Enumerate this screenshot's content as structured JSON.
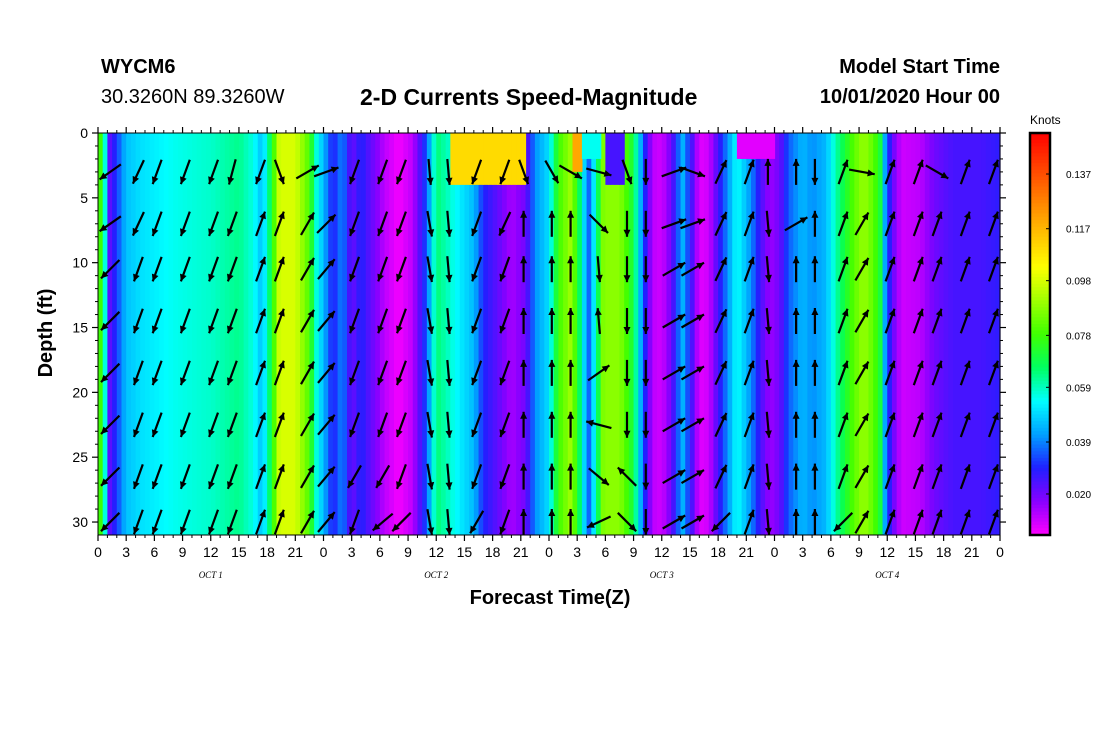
{
  "header": {
    "station_id": "WYCM6",
    "coordinates": "30.3260N 89.3260W",
    "title": "2-D Currents Speed-Magnitude",
    "model_start_label": "Model Start Time",
    "model_start_value": "10/01/2020 Hour 00"
  },
  "chart_data": {
    "type": "heatmap",
    "title": "2-D Currents Speed-Magnitude",
    "xlabel": "Forecast Time(Z)",
    "ylabel": "Depth (ft)",
    "ylim": [
      31,
      0
    ],
    "xlim_hours": [
      0,
      96
    ],
    "y_ticks": [
      0,
      5,
      10,
      15,
      20,
      25,
      30
    ],
    "x_tick_labels": [
      "0",
      "3",
      "6",
      "9",
      "12",
      "15",
      "18",
      "21",
      "0",
      "3",
      "6",
      "9",
      "12",
      "15",
      "18",
      "21",
      "0",
      "3",
      "6",
      "9",
      "12",
      "15",
      "18",
      "21",
      "0",
      "3",
      "6",
      "9",
      "12",
      "15",
      "18",
      "21",
      "0"
    ],
    "day_labels": [
      "OCT 1",
      "OCT 2",
      "OCT 3",
      "OCT 4"
    ],
    "colorbar": {
      "units": "Knots",
      "tick_labels": [
        "0.137",
        "0.117",
        "0.098",
        "0.078",
        "0.059",
        "0.039",
        "0.020"
      ],
      "colors": [
        "#ff00ff",
        "#8800ff",
        "#2020ff",
        "#00a0ff",
        "#00ffff",
        "#00ff60",
        "#40ff00",
        "#a0ff00",
        "#ffff00",
        "#ffc000",
        "#ff8000",
        "#ff4000",
        "#ff0000"
      ],
      "range": [
        0.005,
        0.152
      ]
    },
    "speed_by_hour": [
      {
        "t": 0,
        "v": 0.085
      },
      {
        "t": 0.6,
        "v": 0.068
      },
      {
        "t": 1.2,
        "v": 0.022
      },
      {
        "t": 2.0,
        "v": 0.032
      },
      {
        "t": 3.0,
        "v": 0.046
      },
      {
        "t": 4.5,
        "v": 0.05
      },
      {
        "t": 8,
        "v": 0.055
      },
      {
        "t": 12,
        "v": 0.058
      },
      {
        "t": 15,
        "v": 0.063
      },
      {
        "t": 16.5,
        "v": 0.056
      },
      {
        "t": 17.5,
        "v": 0.045
      },
      {
        "t": 18.5,
        "v": 0.072
      },
      {
        "t": 19.3,
        "v": 0.098
      },
      {
        "t": 21,
        "v": 0.098
      },
      {
        "t": 22.5,
        "v": 0.08
      },
      {
        "t": 23.3,
        "v": 0.055
      },
      {
        "t": 24,
        "v": 0.045
      },
      {
        "t": 25,
        "v": 0.028
      },
      {
        "t": 26,
        "v": 0.04
      },
      {
        "t": 27,
        "v": 0.02
      },
      {
        "t": 28,
        "v": 0.03
      },
      {
        "t": 29,
        "v": 0.022
      },
      {
        "t": 30.5,
        "v": 0.012
      },
      {
        "t": 32,
        "v": 0.006
      },
      {
        "t": 33.5,
        "v": 0.012
      },
      {
        "t": 35,
        "v": 0.035
      },
      {
        "t": 36,
        "v": 0.065
      },
      {
        "t": 37,
        "v": 0.06
      },
      {
        "t": 38.5,
        "v": 0.052
      },
      {
        "t": 40,
        "v": 0.045
      },
      {
        "t": 41,
        "v": 0.03
      },
      {
        "t": 42,
        "v": 0.025
      },
      {
        "t": 44,
        "v": 0.014
      },
      {
        "t": 45.5,
        "v": 0.02
      },
      {
        "t": 46.5,
        "v": 0.04
      },
      {
        "t": 48,
        "v": 0.05
      },
      {
        "t": 49,
        "v": 0.078
      },
      {
        "t": 50.3,
        "v": 0.09
      },
      {
        "t": 51,
        "v": 0.075
      },
      {
        "t": 51.7,
        "v": 0.05
      },
      {
        "t": 52.3,
        "v": 0.035
      },
      {
        "t": 53,
        "v": 0.06
      },
      {
        "t": 53.8,
        "v": 0.088
      },
      {
        "t": 55.5,
        "v": 0.088
      },
      {
        "t": 57,
        "v": 0.07
      },
      {
        "t": 58,
        "v": 0.035
      },
      {
        "t": 59,
        "v": 0.012
      },
      {
        "t": 60,
        "v": 0.01
      },
      {
        "t": 61,
        "v": 0.02
      },
      {
        "t": 62.2,
        "v": 0.045
      },
      {
        "t": 63.2,
        "v": 0.025
      },
      {
        "t": 64,
        "v": 0.008
      },
      {
        "t": 65,
        "v": 0.01
      },
      {
        "t": 66,
        "v": 0.025
      },
      {
        "t": 67,
        "v": 0.04
      },
      {
        "t": 68,
        "v": 0.055
      },
      {
        "t": 69.5,
        "v": 0.04
      },
      {
        "t": 70.5,
        "v": 0.025
      },
      {
        "t": 71.5,
        "v": 0.015
      },
      {
        "t": 72.5,
        "v": 0.02
      },
      {
        "t": 73.5,
        "v": 0.035
      },
      {
        "t": 75,
        "v": 0.045
      },
      {
        "t": 76,
        "v": 0.04
      },
      {
        "t": 77.5,
        "v": 0.045
      },
      {
        "t": 78.5,
        "v": 0.06
      },
      {
        "t": 80.5,
        "v": 0.082
      },
      {
        "t": 81.5,
        "v": 0.09
      },
      {
        "t": 82.5,
        "v": 0.082
      },
      {
        "t": 83.3,
        "v": 0.07
      },
      {
        "t": 83.8,
        "v": 0.04
      },
      {
        "t": 84.5,
        "v": 0.022
      },
      {
        "t": 85.5,
        "v": 0.01
      },
      {
        "t": 87.5,
        "v": 0.012
      },
      {
        "t": 89,
        "v": 0.02
      },
      {
        "t": 91,
        "v": 0.025
      },
      {
        "t": 94,
        "v": 0.025
      },
      {
        "t": 96,
        "v": 0.028
      }
    ],
    "surface_anomalies": [
      {
        "t0": 37.5,
        "t1": 45.5,
        "depth_max": 4,
        "v": 0.11
      },
      {
        "t0": 50.5,
        "t1": 51.5,
        "depth_max": 3,
        "v": 0.12
      },
      {
        "t0": 51.5,
        "t1": 53.5,
        "depth_max": 2,
        "v": 0.055
      },
      {
        "t0": 54,
        "t1": 56,
        "depth_max": 4,
        "v": 0.025
      },
      {
        "t0": 68,
        "t1": 72,
        "depth_max": 2,
        "v": 0.008
      }
    ],
    "vectors_note": "direction arrows every 2.6 h at depths 3,7,10.5,14.5,18.5,22.5,26.5,30 ft",
    "vector_directions_deg": {
      "0": [
        235,
        235,
        225,
        225,
        225,
        225,
        225,
        225
      ],
      "3": [
        205,
        205,
        200,
        200,
        200,
        200,
        200,
        200
      ],
      "5": [
        200,
        200,
        200,
        200,
        200,
        200,
        200,
        200
      ],
      "8": [
        200,
        200,
        200,
        200,
        200,
        200,
        200,
        200
      ],
      "11": [
        200,
        200,
        200,
        200,
        200,
        200,
        200,
        200
      ],
      "13": [
        195,
        200,
        200,
        200,
        200,
        200,
        200,
        200
      ],
      "16": [
        200,
        20,
        20,
        20,
        20,
        20,
        20,
        20
      ],
      "18": [
        160,
        20,
        20,
        20,
        20,
        20,
        20,
        20
      ],
      "21": [
        60,
        30,
        30,
        30,
        30,
        30,
        30,
        30
      ],
      "23": [
        70,
        45,
        40,
        40,
        40,
        40,
        40,
        40
      ],
      "26": [
        200,
        200,
        200,
        200,
        200,
        200,
        210,
        200
      ],
      "29": [
        200,
        200,
        200,
        200,
        200,
        200,
        210,
        230
      ],
      "31": [
        200,
        200,
        200,
        200,
        200,
        200,
        200,
        225
      ],
      "34": [
        175,
        170,
        170,
        170,
        170,
        170,
        170,
        170
      ],
      "36": [
        175,
        175,
        175,
        175,
        175,
        175,
        175,
        175
      ],
      "39": [
        200,
        200,
        200,
        200,
        200,
        200,
        200,
        210
      ],
      "42": [
        200,
        205,
        200,
        200,
        200,
        200,
        200,
        200
      ],
      "44": [
        160,
        0,
        0,
        0,
        0,
        0,
        0,
        0
      ],
      "47": [
        150,
        0,
        0,
        0,
        0,
        0,
        0,
        0
      ],
      "49": [
        120,
        0,
        0,
        0,
        0,
        0,
        0,
        0
      ],
      "52": [
        105,
        135,
        175,
        355,
        55,
        285,
        130,
        245
      ],
      "55": [
        160,
        180,
        180,
        180,
        180,
        180,
        315,
        135
      ],
      "57": [
        180,
        180,
        180,
        180,
        180,
        180,
        180,
        180
      ],
      "60": [
        70,
        70,
        60,
        60,
        60,
        60,
        60,
        60
      ],
      "62": [
        110,
        70,
        60,
        60,
        60,
        60,
        60,
        60
      ],
      "65": [
        25,
        25,
        25,
        25,
        25,
        25,
        25,
        225
      ],
      "68": [
        20,
        20,
        20,
        20,
        20,
        20,
        20,
        20
      ],
      "70": [
        0,
        175,
        175,
        175,
        175,
        175,
        175,
        175
      ],
      "73": [
        0,
        60,
        0,
        0,
        0,
        0,
        0,
        0
      ],
      "75": [
        180,
        0,
        0,
        0,
        0,
        0,
        0,
        0
      ],
      "78": [
        20,
        20,
        20,
        20,
        20,
        20,
        20,
        225
      ],
      "80": [
        100,
        30,
        30,
        30,
        30,
        30,
        30,
        30
      ],
      "83": [
        20,
        20,
        20,
        20,
        20,
        20,
        20,
        20
      ],
      "86": [
        20,
        20,
        20,
        20,
        20,
        20,
        20,
        20
      ],
      "88": [
        120,
        20,
        20,
        20,
        20,
        20,
        20,
        20
      ],
      "91": [
        20,
        20,
        20,
        20,
        20,
        20,
        20,
        20
      ],
      "94": [
        20,
        20,
        20,
        20,
        20,
        20,
        20,
        20
      ]
    }
  }
}
